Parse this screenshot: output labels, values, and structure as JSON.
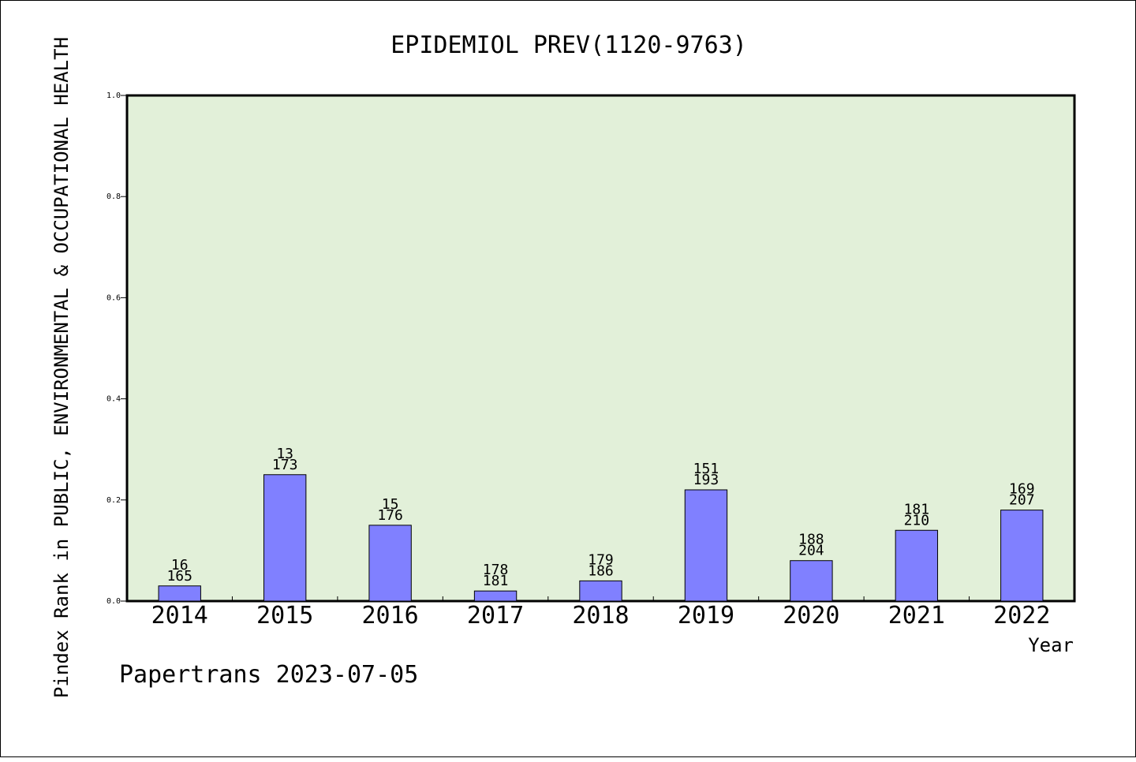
{
  "chart_data": {
    "type": "bar",
    "title": "EPIDEMIOL PREV(1120-9763)",
    "xlabel": "Year",
    "ylabel": "Pindex Rank in PUBLIC, ENVIRONMENTAL & OCCUPATIONAL HEALTH",
    "categories": [
      "2014",
      "2015",
      "2016",
      "2017",
      "2018",
      "2019",
      "2020",
      "2021",
      "2022"
    ],
    "values": [
      0.03,
      0.25,
      0.15,
      0.02,
      0.04,
      0.22,
      0.08,
      0.14,
      0.18
    ],
    "bar_labels_top": [
      "16",
      "13",
      "15",
      "178",
      "179",
      "151",
      "188",
      "181",
      "169"
    ],
    "bar_labels_bottom": [
      "165",
      "173",
      "176",
      "181",
      "186",
      "193",
      "204",
      "210",
      "207"
    ],
    "ylim": [
      0,
      1.0
    ],
    "yticks": [
      "0.0",
      "0.2",
      "0.4",
      "0.6",
      "0.8",
      "1.0"
    ],
    "grid": false,
    "colors": {
      "bar": "#8080ff",
      "plot_bg": "#e2f0d9"
    }
  },
  "footer": "Papertrans 2023-07-05"
}
